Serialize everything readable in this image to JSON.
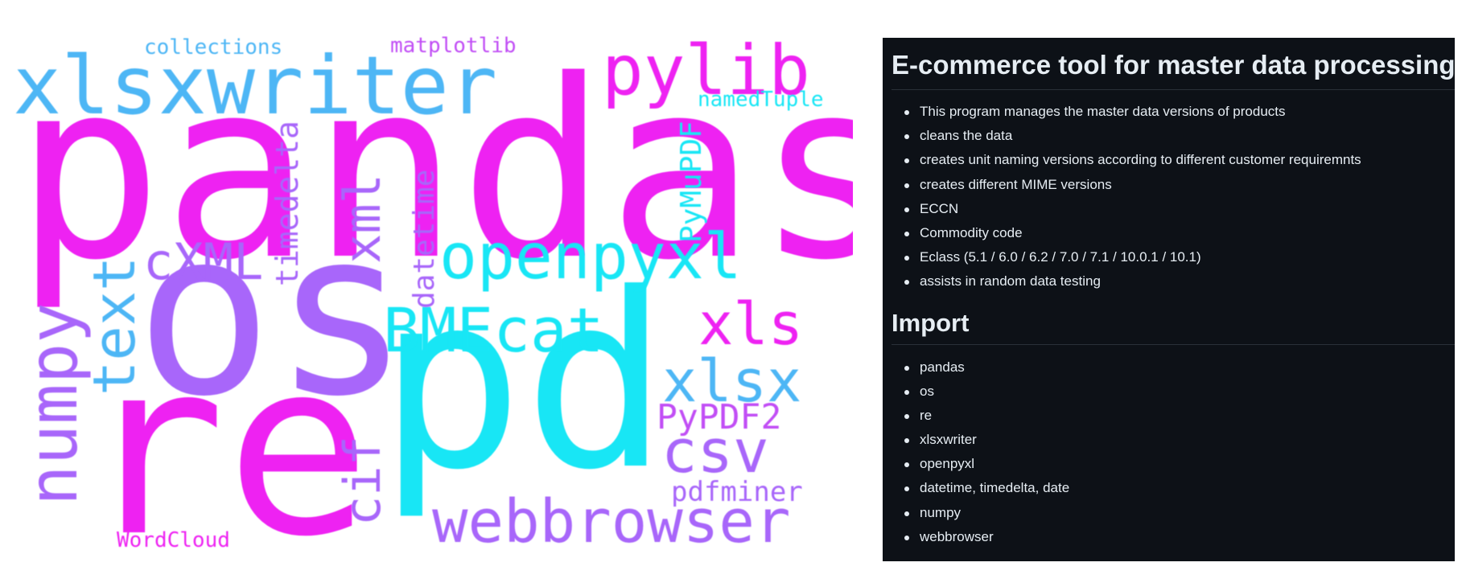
{
  "wordcloud": {
    "words": [
      "pandas",
      "os",
      "re",
      "pd",
      "xlsxwriter",
      "pylib",
      "openpyxl",
      "BMEcat",
      "xls",
      "xlsx",
      "csv",
      "webbrowser",
      "PyPDF2",
      "pdfminer",
      "numpy",
      "text",
      "cXML",
      "xml",
      "cif",
      "timedelta",
      "datetime",
      "PyMuPDF",
      "collections",
      "matplotlib",
      "namedTuple",
      "WordCloud"
    ],
    "colors": {
      "magenta": "#ee22f2",
      "purple": "#a866fa",
      "cyan": "#18e6f5",
      "blue": "#4db6f5",
      "violet": "#c14ef5"
    }
  },
  "readme": {
    "title": "E-commerce tool for master data processing",
    "features": [
      "This program manages the master data versions of products",
      "cleans the data",
      "creates unit naming versions according to different customer requiremnts",
      "creates different MIME versions",
      "ECCN",
      "Commodity code",
      "Eclass (5.1 / 6.0 / 6.2 / 7.0 / 7.1 / 10.0.1 / 10.1)",
      "assists in random data testing"
    ],
    "import_heading": "Import",
    "imports": [
      "pandas",
      "os",
      "re",
      "xlsxwriter",
      "openpyxl",
      "datetime, timedelta, date",
      "numpy",
      "webbrowser"
    ],
    "colors": {
      "background": "#0d1117",
      "text": "#e6edf3",
      "divider": "#2a3038"
    }
  }
}
